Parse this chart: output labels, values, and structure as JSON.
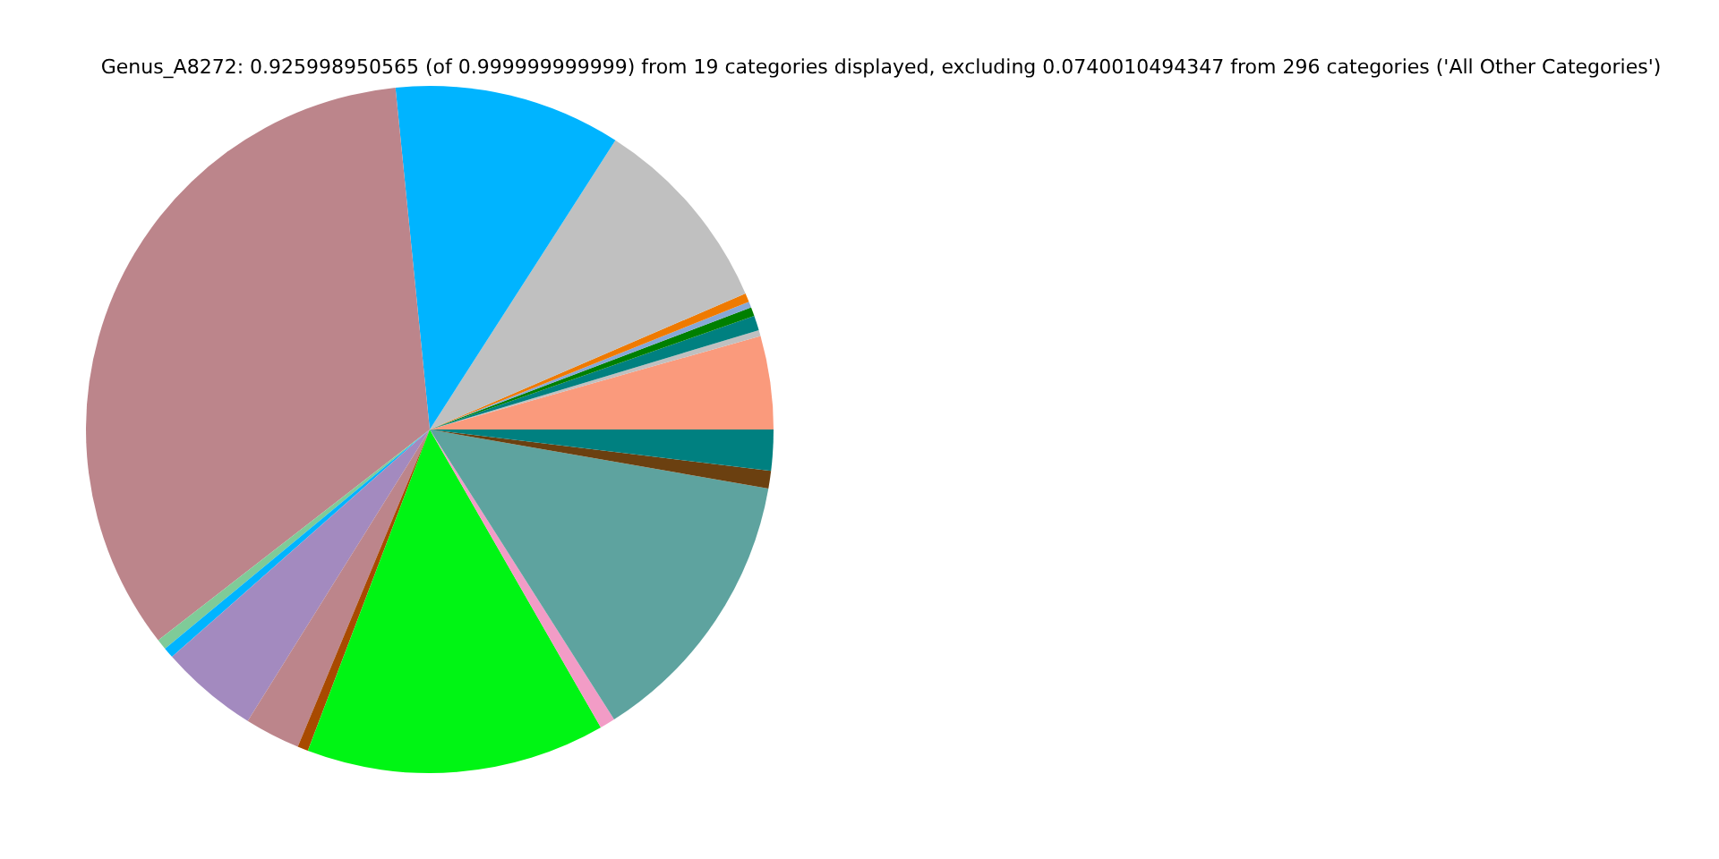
{
  "chart_data": {
    "type": "pie",
    "title": "Genus_A8272: 0.925998950565 (of 0.999999999999) from 19 categories displayed, excluding 0.0740010494347 from 296 categories ('All Other Categories')",
    "categories": [
      null,
      null,
      null,
      null,
      null,
      null,
      null,
      null,
      null,
      null,
      null,
      null,
      null,
      null,
      null,
      null,
      null,
      null,
      null
    ],
    "values": [
      4.39,
      0.28,
      0.69,
      0.42,
      0.28,
      0.42,
      9.44,
      10.67,
      33.92,
      0.5,
      0.5,
      4.61,
      2.61,
      0.5,
      14.06,
      0.72,
      13.24,
      0.83,
      1.92
    ],
    "colors": [
      "#fa9a7c",
      "#c0c0c0",
      "#008080",
      "#007f00",
      "#87a8d8",
      "#ef7a00",
      "#c0c0c0",
      "#00b4ff",
      "#bc858b",
      "#7fcb98",
      "#00b4ff",
      "#a38abf",
      "#bc858b",
      "#a84a00",
      "#00f514",
      "#f29cc6",
      "#5ea39f",
      "#6b4010",
      "#008080"
    ]
  }
}
